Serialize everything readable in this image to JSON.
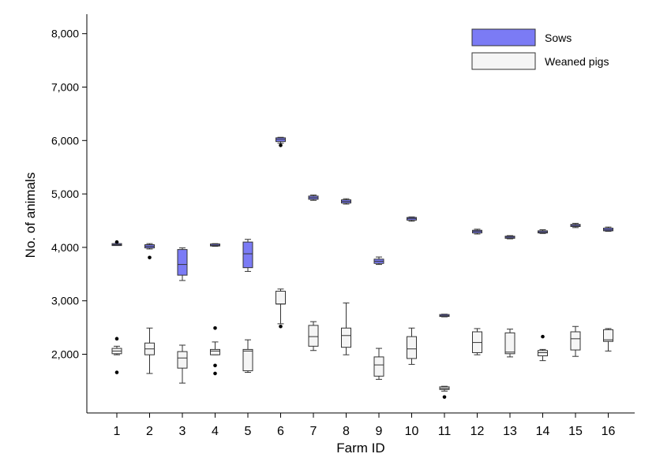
{
  "chart_data": {
    "type": "boxplot",
    "xlabel": "Farm ID",
    "ylabel": "No. of animals",
    "ylim": [
      1000,
      8300
    ],
    "yticks": [
      2000,
      3000,
      4000,
      5000,
      6000,
      7000,
      8000
    ],
    "ytick_labels": [
      "2,000",
      "3,000",
      "4,000",
      "5,000",
      "6,000",
      "7,000",
      "8,000"
    ],
    "categories": [
      "1",
      "2",
      "3",
      "4",
      "5",
      "6",
      "7",
      "8",
      "9",
      "10",
      "11",
      "12",
      "13",
      "14",
      "15",
      "16"
    ],
    "legend_position": "top-right",
    "series": [
      {
        "name": "Sows",
        "color": "#7b7bf5",
        "boxes": [
          {
            "min": 4040,
            "q1": 4045,
            "median": 4050,
            "q3": 4060,
            "max": 4070,
            "outliers": [
              4100
            ]
          },
          {
            "min": 3970,
            "q1": 3990,
            "median": 4020,
            "q3": 4050,
            "max": 4070,
            "outliers": [
              3810
            ]
          },
          {
            "min": 3380,
            "q1": 3480,
            "median": 3680,
            "q3": 3960,
            "max": 3990,
            "outliers": []
          },
          {
            "min": 4020,
            "q1": 4030,
            "median": 4040,
            "q3": 4060,
            "max": 4070,
            "outliers": []
          },
          {
            "min": 3550,
            "q1": 3620,
            "median": 3880,
            "q3": 4100,
            "max": 4150,
            "outliers": []
          },
          {
            "min": 5950,
            "q1": 5980,
            "median": 6020,
            "q3": 6050,
            "max": 6060,
            "outliers": [
              5910
            ]
          },
          {
            "min": 4880,
            "q1": 4900,
            "median": 4930,
            "q3": 4960,
            "max": 4980,
            "outliers": []
          },
          {
            "min": 4810,
            "q1": 4830,
            "median": 4860,
            "q3": 4890,
            "max": 4910,
            "outliers": []
          },
          {
            "min": 3680,
            "q1": 3700,
            "median": 3740,
            "q3": 3780,
            "max": 3820,
            "outliers": []
          },
          {
            "min": 4490,
            "q1": 4510,
            "median": 4540,
            "q3": 4560,
            "max": 4570,
            "outliers": []
          },
          {
            "min": 2700,
            "q1": 2710,
            "median": 2720,
            "q3": 2740,
            "max": 2750,
            "outliers": []
          },
          {
            "min": 4250,
            "q1": 4270,
            "median": 4300,
            "q3": 4320,
            "max": 4340,
            "outliers": []
          },
          {
            "min": 4160,
            "q1": 4170,
            "median": 4190,
            "q3": 4210,
            "max": 4220,
            "outliers": []
          },
          {
            "min": 4260,
            "q1": 4270,
            "median": 4290,
            "q3": 4310,
            "max": 4330,
            "outliers": []
          },
          {
            "min": 4370,
            "q1": 4390,
            "median": 4410,
            "q3": 4430,
            "max": 4450,
            "outliers": []
          },
          {
            "min": 4300,
            "q1": 4310,
            "median": 4330,
            "q3": 4360,
            "max": 4380,
            "outliers": []
          }
        ]
      },
      {
        "name": "Weaned pigs",
        "color": "#f5f5f5",
        "boxes": [
          {
            "min": 1990,
            "q1": 2010,
            "median": 2060,
            "q3": 2110,
            "max": 2150,
            "outliers": [
              2290,
              1660
            ]
          },
          {
            "min": 1640,
            "q1": 1990,
            "median": 2100,
            "q3": 2210,
            "max": 2490,
            "outliers": []
          },
          {
            "min": 1460,
            "q1": 1740,
            "median": 1930,
            "q3": 2050,
            "max": 2170,
            "outliers": []
          },
          {
            "min": 1990,
            "q1": 1990,
            "median": 2060,
            "q3": 2090,
            "max": 2230,
            "outliers": [
              2490,
              1790,
              1640
            ]
          },
          {
            "min": 1660,
            "q1": 1690,
            "median": 2060,
            "q3": 2090,
            "max": 2270,
            "outliers": []
          },
          {
            "min": 2570,
            "q1": 2940,
            "median": 2940,
            "q3": 3180,
            "max": 3220,
            "outliers": [
              2520
            ]
          },
          {
            "min": 2070,
            "q1": 2150,
            "median": 2330,
            "q3": 2540,
            "max": 2610,
            "outliers": []
          },
          {
            "min": 1990,
            "q1": 2130,
            "median": 2350,
            "q3": 2490,
            "max": 2960,
            "outliers": []
          },
          {
            "min": 1530,
            "q1": 1590,
            "median": 1800,
            "q3": 1950,
            "max": 2110,
            "outliers": []
          },
          {
            "min": 1810,
            "q1": 1920,
            "median": 2100,
            "q3": 2330,
            "max": 2490,
            "outliers": []
          },
          {
            "min": 1310,
            "q1": 1340,
            "median": 1360,
            "q3": 1390,
            "max": 1400,
            "outliers": [
              1200
            ]
          },
          {
            "min": 1990,
            "q1": 2030,
            "median": 2220,
            "q3": 2420,
            "max": 2480,
            "outliers": []
          },
          {
            "min": 1950,
            "q1": 2010,
            "median": 2040,
            "q3": 2400,
            "max": 2470,
            "outliers": []
          },
          {
            "min": 1880,
            "q1": 1970,
            "median": 2030,
            "q3": 2070,
            "max": 2090,
            "outliers": [
              2330
            ]
          },
          {
            "min": 1960,
            "q1": 2080,
            "median": 2290,
            "q3": 2420,
            "max": 2520,
            "outliers": []
          },
          {
            "min": 2060,
            "q1": 2240,
            "median": 2270,
            "q3": 2460,
            "max": 2480,
            "outliers": []
          }
        ]
      }
    ]
  }
}
